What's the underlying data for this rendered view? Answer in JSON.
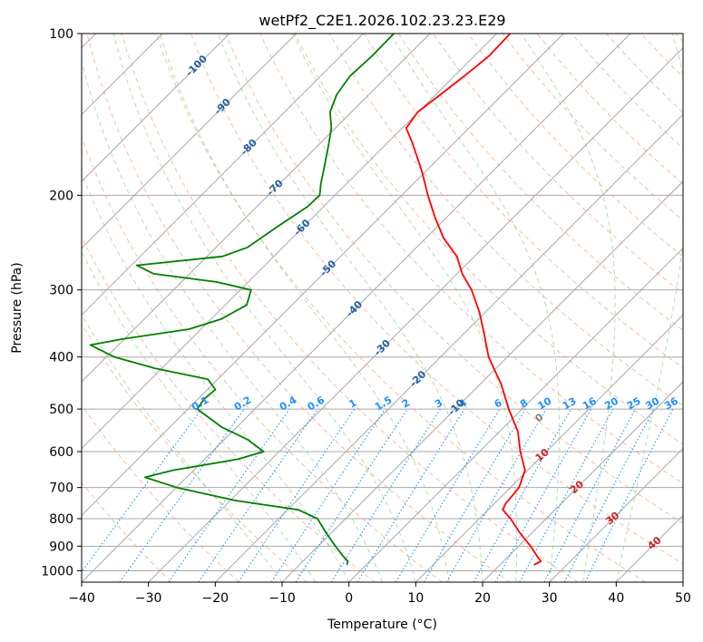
{
  "chart_data": {
    "type": "line",
    "title": "wetPf2_C2E1.2026.102.23.23.E29",
    "xlabel": "Temperature (°C)",
    "ylabel": "Pressure (hPa)",
    "xlim": [
      -40,
      50
    ],
    "ylim": [
      1050,
      100
    ],
    "x_ticks": [
      -40,
      -30,
      -20,
      -10,
      0,
      10,
      20,
      30,
      40,
      50
    ],
    "y_ticks": [
      1000,
      900,
      800,
      700,
      600,
      500,
      400,
      300,
      200,
      100
    ],
    "grid": true,
    "skew": true,
    "log_pressure_axis": true,
    "colors": {
      "temperature": "#ff0000",
      "dewpoint": "#008000",
      "isotherm_label": "#1f5fa0",
      "mixing_ratio": "#1e8fff",
      "moist_label": "#d02020"
    },
    "isotherm_labels": [
      {
        "t": -100,
        "p": 115
      },
      {
        "t": -90,
        "p": 137
      },
      {
        "t": -80,
        "p": 163
      },
      {
        "t": -70,
        "p": 194
      },
      {
        "t": -60,
        "p": 230
      },
      {
        "t": -50,
        "p": 274
      },
      {
        "t": -40,
        "p": 326
      },
      {
        "t": -30,
        "p": 385
      },
      {
        "t": -20,
        "p": 440
      },
      {
        "t": -10,
        "p": 497
      }
    ],
    "mixing_ratio_labels": [
      "0.1",
      "0.2",
      "0.4",
      "0.6",
      "1",
      "1.5",
      "2",
      "3",
      "4",
      "6",
      "8",
      "10",
      "13",
      "16",
      "20",
      "25",
      "30",
      "36"
    ],
    "mixing_ratio_values": [
      0.1,
      0.2,
      0.4,
      0.6,
      1,
      1.5,
      2,
      3,
      4,
      6,
      8,
      10,
      13,
      16,
      20,
      25,
      30,
      36
    ],
    "moist_adiabat_labels": [
      {
        "text": "0",
        "t": 4,
        "p": 520,
        "color": "#808080"
      },
      {
        "text": "10",
        "t": 10,
        "p": 610,
        "color": "#d02020"
      },
      {
        "text": "20",
        "t": 20,
        "p": 700,
        "color": "#d02020"
      },
      {
        "text": "30",
        "t": 30,
        "p": 800,
        "color": "#d02020"
      },
      {
        "text": "40",
        "t": 40,
        "p": 890,
        "color": "#d02020"
      }
    ],
    "series": [
      {
        "key": "temperature",
        "color": "#ff0000",
        "points": [
          [
            975,
            25.1
          ],
          [
            960,
            25.6
          ],
          [
            940,
            24.3
          ],
          [
            900,
            21.8
          ],
          [
            850,
            18.2
          ],
          [
            800,
            14.7
          ],
          [
            770,
            12.2
          ],
          [
            750,
            11.7
          ],
          [
            700,
            11.3
          ],
          [
            650,
            9.6
          ],
          [
            600,
            6.1
          ],
          [
            550,
            2.7
          ],
          [
            500,
            -2.0
          ],
          [
            450,
            -6.8
          ],
          [
            400,
            -12.8
          ],
          [
            360,
            -17.2
          ],
          [
            330,
            -20.9
          ],
          [
            300,
            -25.4
          ],
          [
            280,
            -29.2
          ],
          [
            260,
            -32.6
          ],
          [
            240,
            -37.4
          ],
          [
            220,
            -41.7
          ],
          [
            200,
            -46.1
          ],
          [
            180,
            -50.7
          ],
          [
            160,
            -56.2
          ],
          [
            150,
            -59.4
          ],
          [
            140,
            -60.1
          ],
          [
            130,
            -59.3
          ],
          [
            120,
            -58.5
          ],
          [
            110,
            -57.8
          ],
          [
            100,
            -58.0
          ]
        ]
      },
      {
        "key": "dewpoint",
        "color": "#008000",
        "points": [
          [
            975,
            -2.9
          ],
          [
            960,
            -3.3
          ],
          [
            940,
            -4.7
          ],
          [
            900,
            -7.4
          ],
          [
            850,
            -10.8
          ],
          [
            800,
            -14.2
          ],
          [
            770,
            -18.4
          ],
          [
            740,
            -29.2
          ],
          [
            700,
            -39.9
          ],
          [
            670,
            -46.2
          ],
          [
            650,
            -43.1
          ],
          [
            620,
            -35.0
          ],
          [
            600,
            -32.3
          ],
          [
            570,
            -36.5
          ],
          [
            540,
            -42.3
          ],
          [
            500,
            -48.6
          ],
          [
            480,
            -49.1
          ],
          [
            460,
            -48.8
          ],
          [
            440,
            -51.5
          ],
          [
            420,
            -61.0
          ],
          [
            400,
            -68.8
          ],
          [
            380,
            -74.2
          ],
          [
            370,
            -70.1
          ],
          [
            355,
            -61.8
          ],
          [
            340,
            -58.5
          ],
          [
            320,
            -56.8
          ],
          [
            300,
            -58.4
          ],
          [
            290,
            -64.8
          ],
          [
            280,
            -75.4
          ],
          [
            270,
            -79.2
          ],
          [
            260,
            -67.7
          ],
          [
            250,
            -65.3
          ],
          [
            230,
            -64.0
          ],
          [
            210,
            -62.4
          ],
          [
            200,
            -62.3
          ],
          [
            190,
            -63.9
          ],
          [
            180,
            -65.4
          ],
          [
            160,
            -68.7
          ],
          [
            150,
            -70.6
          ],
          [
            140,
            -73.2
          ],
          [
            130,
            -74.8
          ],
          [
            120,
            -75.6
          ],
          [
            110,
            -75.3
          ],
          [
            100,
            -75.4
          ]
        ]
      }
    ]
  }
}
